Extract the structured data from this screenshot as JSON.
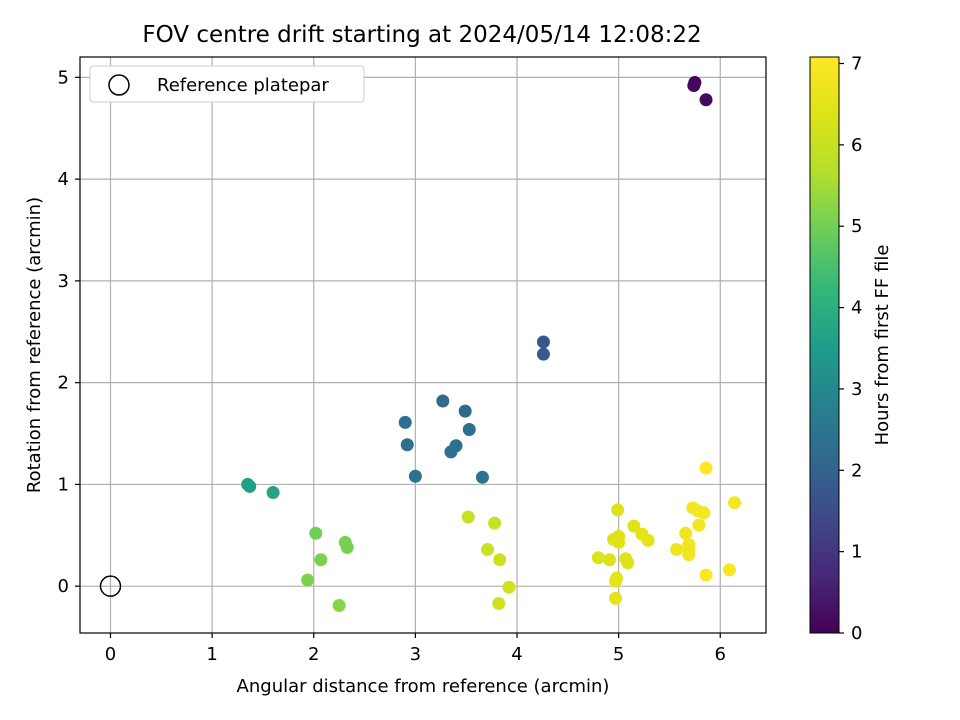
{
  "chart_data": {
    "type": "scatter",
    "title": "FOV centre drift starting at 2024/05/14 12:08:22",
    "xlabel": "Angular distance from reference (arcmin)",
    "ylabel": "Rotation from reference (arcmin)",
    "xlim": [
      -0.3,
      6.45
    ],
    "ylim": [
      -0.46,
      5.2
    ],
    "xticks": [
      "0",
      "1",
      "2",
      "3",
      "4",
      "5",
      "6"
    ],
    "yticks": [
      "0",
      "1",
      "2",
      "3",
      "4",
      "5"
    ],
    "grid": true,
    "legend": {
      "position": "top-left",
      "entries": [
        "Reference platepar"
      ]
    },
    "reference_point": {
      "x": 0,
      "y": 0
    },
    "colorbar": {
      "label": "Hours from first FF file",
      "min": 0,
      "max": 7.08,
      "ticks": [
        "0",
        "1",
        "2",
        "3",
        "4",
        "5",
        "6",
        "7"
      ],
      "colormap": "viridis"
    },
    "points": [
      {
        "x": 5.75,
        "y": 4.95,
        "hours": 0.05
      },
      {
        "x": 5.74,
        "y": 4.92,
        "hours": 0.1
      },
      {
        "x": 5.86,
        "y": 4.78,
        "hours": 0.2
      },
      {
        "x": 4.26,
        "y": 2.4,
        "hours": 1.7
      },
      {
        "x": 4.26,
        "y": 2.28,
        "hours": 1.8
      },
      {
        "x": 3.27,
        "y": 1.82,
        "hours": 2.2
      },
      {
        "x": 3.49,
        "y": 1.72,
        "hours": 2.2
      },
      {
        "x": 2.9,
        "y": 1.61,
        "hours": 2.3
      },
      {
        "x": 3.53,
        "y": 1.54,
        "hours": 2.3
      },
      {
        "x": 2.92,
        "y": 1.39,
        "hours": 2.35
      },
      {
        "x": 3.4,
        "y": 1.38,
        "hours": 2.35
      },
      {
        "x": 3.35,
        "y": 1.32,
        "hours": 2.4
      },
      {
        "x": 3.0,
        "y": 1.08,
        "hours": 2.45
      },
      {
        "x": 3.66,
        "y": 1.07,
        "hours": 2.4
      },
      {
        "x": 1.35,
        "y": 1.0,
        "hours": 3.6
      },
      {
        "x": 1.37,
        "y": 0.98,
        "hours": 3.6
      },
      {
        "x": 1.6,
        "y": 0.92,
        "hours": 3.7
      },
      {
        "x": 2.02,
        "y": 0.52,
        "hours": 5.0
      },
      {
        "x": 2.31,
        "y": 0.43,
        "hours": 5.05
      },
      {
        "x": 2.33,
        "y": 0.38,
        "hours": 5.05
      },
      {
        "x": 2.07,
        "y": 0.26,
        "hours": 5.1
      },
      {
        "x": 1.94,
        "y": 0.06,
        "hours": 5.1
      },
      {
        "x": 2.25,
        "y": -0.19,
        "hours": 5.2
      },
      {
        "x": 3.52,
        "y": 0.68,
        "hours": 6.0
      },
      {
        "x": 3.78,
        "y": 0.62,
        "hours": 6.0
      },
      {
        "x": 3.71,
        "y": 0.36,
        "hours": 6.05
      },
      {
        "x": 3.83,
        "y": 0.26,
        "hours": 6.1
      },
      {
        "x": 3.92,
        "y": -0.01,
        "hours": 6.15
      },
      {
        "x": 3.82,
        "y": -0.17,
        "hours": 6.15
      },
      {
        "x": 4.99,
        "y": 0.75,
        "hours": 6.4
      },
      {
        "x": 5.15,
        "y": 0.59,
        "hours": 6.45
      },
      {
        "x": 5.23,
        "y": 0.51,
        "hours": 6.5
      },
      {
        "x": 5.0,
        "y": 0.49,
        "hours": 6.45
      },
      {
        "x": 4.95,
        "y": 0.46,
        "hours": 6.4
      },
      {
        "x": 5.29,
        "y": 0.45,
        "hours": 6.5
      },
      {
        "x": 5.0,
        "y": 0.43,
        "hours": 6.45
      },
      {
        "x": 4.8,
        "y": 0.28,
        "hours": 6.35
      },
      {
        "x": 4.91,
        "y": 0.26,
        "hours": 6.4
      },
      {
        "x": 5.07,
        "y": 0.27,
        "hours": 6.45
      },
      {
        "x": 5.09,
        "y": 0.23,
        "hours": 6.45
      },
      {
        "x": 4.98,
        "y": 0.08,
        "hours": 6.5
      },
      {
        "x": 4.97,
        "y": 0.05,
        "hours": 6.5
      },
      {
        "x": 4.97,
        "y": -0.12,
        "hours": 6.5
      },
      {
        "x": 5.86,
        "y": 1.16,
        "hours": 7.05
      },
      {
        "x": 6.14,
        "y": 0.82,
        "hours": 6.9
      },
      {
        "x": 5.73,
        "y": 0.77,
        "hours": 6.85
      },
      {
        "x": 5.84,
        "y": 0.72,
        "hours": 6.9
      },
      {
        "x": 5.78,
        "y": 0.74,
        "hours": 6.85
      },
      {
        "x": 5.79,
        "y": 0.6,
        "hours": 6.85
      },
      {
        "x": 5.66,
        "y": 0.52,
        "hours": 6.8
      },
      {
        "x": 5.69,
        "y": 0.41,
        "hours": 6.8
      },
      {
        "x": 5.57,
        "y": 0.36,
        "hours": 6.75
      },
      {
        "x": 5.69,
        "y": 0.36,
        "hours": 6.8
      },
      {
        "x": 5.69,
        "y": 0.31,
        "hours": 6.8
      },
      {
        "x": 6.09,
        "y": 0.16,
        "hours": 6.95
      },
      {
        "x": 5.86,
        "y": 0.11,
        "hours": 7.0
      }
    ]
  }
}
